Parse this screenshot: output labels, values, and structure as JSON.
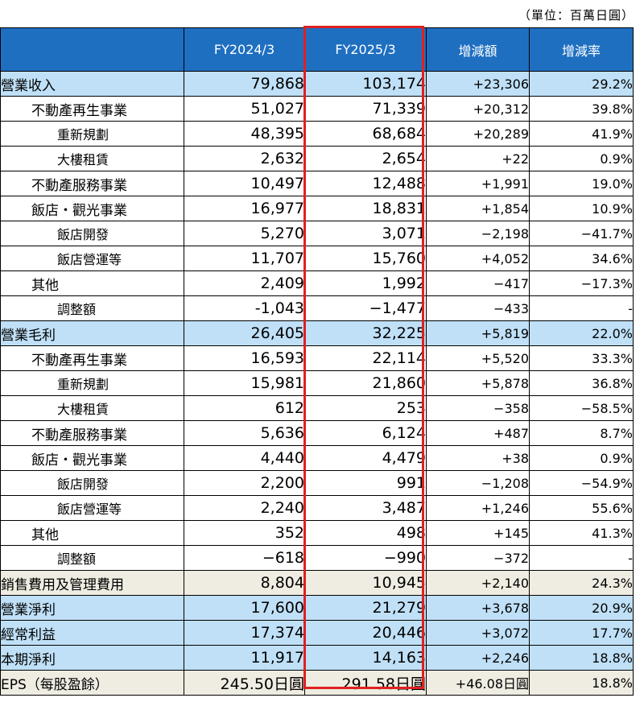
{
  "unit_note": "（單位：百萬日圓）",
  "columns": [
    "",
    "FY2024/3",
    "FY2025/3",
    "增減額",
    "增減率"
  ],
  "rows": [
    {
      "label": "營業收入",
      "level": 0,
      "style": "hl",
      "fy2024": "79,868",
      "fy2025": "103,174",
      "diff": "+23,306",
      "rate": "29.2%"
    },
    {
      "label": "不動產再生事業",
      "level": 1,
      "style": "",
      "fy2024": "51,027",
      "fy2025": "71,339",
      "diff": "+20,312",
      "rate": "39.8%"
    },
    {
      "label": "重新規劃",
      "level": 2,
      "style": "",
      "fy2024": "48,395",
      "fy2025": "68,684",
      "diff": "+20,289",
      "rate": "41.9%"
    },
    {
      "label": "大樓租賃",
      "level": 2,
      "style": "",
      "fy2024": "2,632",
      "fy2025": "2,654",
      "diff": "+22",
      "rate": "0.9%"
    },
    {
      "label": "不動產服務事業",
      "level": 1,
      "style": "",
      "fy2024": "10,497",
      "fy2025": "12,488",
      "diff": "+1,991",
      "rate": "19.0%"
    },
    {
      "label": "飯店・觀光事業",
      "level": 1,
      "style": "",
      "fy2024": "16,977",
      "fy2025": "18,831",
      "diff": "+1,854",
      "rate": "10.9%"
    },
    {
      "label": "飯店開發",
      "level": 2,
      "style": "",
      "fy2024": "5,270",
      "fy2025": "3,071",
      "diff": "−2,198",
      "rate": "−41.7%"
    },
    {
      "label": "飯店營運等",
      "level": 2,
      "style": "",
      "fy2024": "11,707",
      "fy2025": "15,760",
      "diff": "+4,052",
      "rate": "34.6%"
    },
    {
      "label": "其他",
      "level": 1,
      "style": "",
      "fy2024": "2,409",
      "fy2025": "1,992",
      "diff": "−417",
      "rate": "−17.3%"
    },
    {
      "label": "調整額",
      "level": 2,
      "style": "",
      "fy2024": "-1,043",
      "fy2025": "−1,477",
      "diff": "−433",
      "rate": "-"
    },
    {
      "label": "營業毛利",
      "level": 0,
      "style": "hl",
      "fy2024": "26,405",
      "fy2025": "32,225",
      "diff": "+5,819",
      "rate": "22.0%"
    },
    {
      "label": "不動產再生事業",
      "level": 1,
      "style": "",
      "fy2024": "16,593",
      "fy2025": "22,114",
      "diff": "+5,520",
      "rate": "33.3%"
    },
    {
      "label": "重新規劃",
      "level": 2,
      "style": "",
      "fy2024": "15,981",
      "fy2025": "21,860",
      "diff": "+5,878",
      "rate": "36.8%"
    },
    {
      "label": "大樓租賃",
      "level": 2,
      "style": "",
      "fy2024": "612",
      "fy2025": "253",
      "diff": "−358",
      "rate": "−58.5%"
    },
    {
      "label": "不動產服務事業",
      "level": 1,
      "style": "",
      "fy2024": "5,636",
      "fy2025": "6,124",
      "diff": "+487",
      "rate": "8.7%"
    },
    {
      "label": "飯店・觀光事業",
      "level": 1,
      "style": "",
      "fy2024": "4,440",
      "fy2025": "4,479",
      "diff": "+38",
      "rate": "0.9%"
    },
    {
      "label": "飯店開發",
      "level": 2,
      "style": "",
      "fy2024": "2,200",
      "fy2025": "991",
      "diff": "−1,208",
      "rate": "−54.9%"
    },
    {
      "label": "飯店營運等",
      "level": 2,
      "style": "",
      "fy2024": "2,240",
      "fy2025": "3,487",
      "diff": "+1,246",
      "rate": "55.6%"
    },
    {
      "label": "其他",
      "level": 1,
      "style": "",
      "fy2024": "352",
      "fy2025": "498",
      "diff": "+145",
      "rate": "41.3%"
    },
    {
      "label": "調整額",
      "level": 2,
      "style": "",
      "fy2024": "−618",
      "fy2025": "−990",
      "diff": "−372",
      "rate": "-"
    },
    {
      "label": "銷售費用及管理費用",
      "level": 0,
      "style": "hl2",
      "fy2024": "8,804",
      "fy2025": "10,945",
      "diff": "+2,140",
      "rate": "24.3%"
    },
    {
      "label": "營業淨利",
      "level": 0,
      "style": "hl",
      "fy2024": "17,600",
      "fy2025": "21,279",
      "diff": "+3,678",
      "rate": "20.9%"
    },
    {
      "label": "經常利益",
      "level": 0,
      "style": "hl",
      "fy2024": "17,374",
      "fy2025": "20,446",
      "diff": "+3,072",
      "rate": "17.7%"
    },
    {
      "label": "本期淨利",
      "level": 0,
      "style": "hl",
      "fy2024": "11,917",
      "fy2025": "14,163",
      "diff": "+2,246",
      "rate": "18.8%"
    },
    {
      "label": "EPS（每股盈餘）",
      "level": 0,
      "style": "eps",
      "fy2024": "245.50日圓",
      "fy2025": "291.58日圓",
      "diff": "+46.08日圓",
      "rate": "18.8%"
    }
  ],
  "colors": {
    "header_blue": "#1f6fc1",
    "highlight_blue": "#bfe0f7",
    "highlight_beige": "#efece2",
    "frame_red": "#e02020"
  }
}
